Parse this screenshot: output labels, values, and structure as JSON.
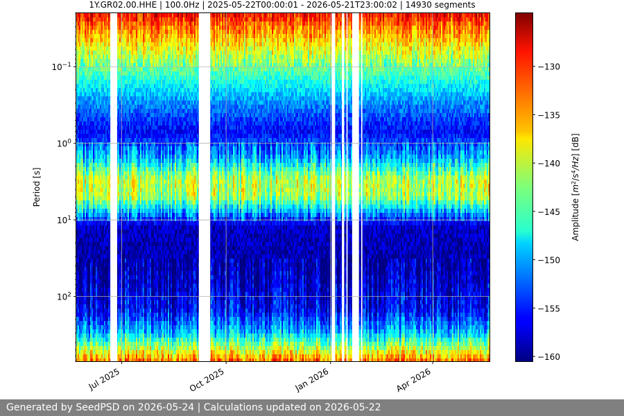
{
  "chart_data": {
    "type": "heatmap",
    "title": "1Y.GR02.00.HHE | 100.0Hz | 2025-05-22T00:00:01 - 2026-05-21T23:00:02 | 14930 segments",
    "ylabel": "Period [s]",
    "y_scale": "log",
    "y_inverted": true,
    "ylim": [
      0.02,
      700
    ],
    "y_ticks": [
      {
        "value": 0.1,
        "mant": "10",
        "exp": "−1"
      },
      {
        "value": 1,
        "mant": "10",
        "exp": "0"
      },
      {
        "value": 10,
        "mant": "10",
        "exp": "1"
      },
      {
        "value": 100,
        "mant": "10",
        "exp": "2"
      }
    ],
    "xlim": [
      "2025-05-22",
      "2026-05-21"
    ],
    "x_ticks": [
      {
        "date": "2025-07-01",
        "label": "Jul 2025"
      },
      {
        "date": "2025-10-01",
        "label": "Oct 2025"
      },
      {
        "date": "2026-01-01",
        "label": "Jan 2026"
      },
      {
        "date": "2026-04-01",
        "label": "Apr 2026"
      }
    ],
    "data_gaps": [
      [
        "2025-06-21",
        "2025-06-27"
      ],
      [
        "2025-09-07",
        "2025-09-17"
      ],
      [
        "2026-01-02",
        "2026-01-05"
      ],
      [
        "2026-01-11",
        "2026-01-13"
      ],
      [
        "2026-01-15",
        "2026-01-16"
      ],
      [
        "2026-01-20",
        "2026-01-26"
      ],
      [
        "2026-01-28",
        "2026-01-29"
      ]
    ],
    "colormap": "jet",
    "colorbar": {
      "label_prefix": "Amplitude [",
      "label_math": "m",
      "label_sup1": "2",
      "label_mid": "/s",
      "label_sup2": "4",
      "label_math2": "/Hz",
      "label_suffix": "] [dB]",
      "range": [
        -160.5,
        -124.5
      ],
      "ticks": [
        -130,
        -135,
        -140,
        -145,
        -150,
        -155,
        -160
      ],
      "tick_labels": [
        "−130",
        "−135",
        "−140",
        "−145",
        "−150",
        "−155",
        "−160"
      ]
    },
    "amplitude_profile_db": [
      {
        "period": 0.02,
        "db": -129
      },
      {
        "period": 0.03,
        "db": -133
      },
      {
        "period": 0.1,
        "db": -143
      },
      {
        "period": 0.3,
        "db": -151
      },
      {
        "period": 0.7,
        "db": -156
      },
      {
        "period": 1.5,
        "db": -150
      },
      {
        "period": 3,
        "db": -140
      },
      {
        "period": 5,
        "db": -141
      },
      {
        "period": 8,
        "db": -150
      },
      {
        "period": 12,
        "db": -158
      },
      {
        "period": 40,
        "db": -159
      },
      {
        "period": 150,
        "db": -156
      },
      {
        "period": 300,
        "db": -149
      },
      {
        "period": 700,
        "db": -133
      }
    ]
  },
  "footer": {
    "text": "Generated by SeedPSD on 2026-05-24 | Calculations updated on 2026-05-22"
  }
}
